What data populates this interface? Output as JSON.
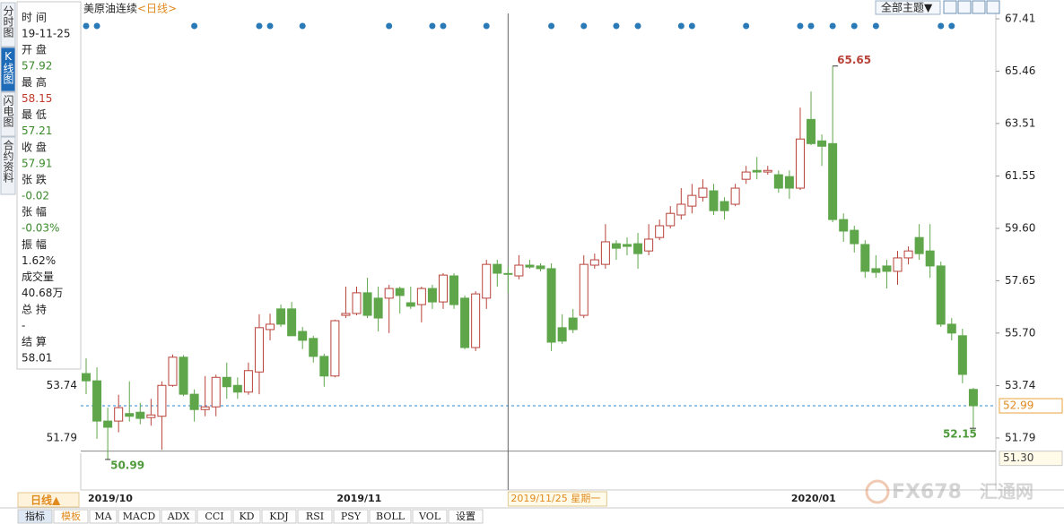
{
  "header": {
    "title": "美原油连续",
    "period": "<日线>"
  },
  "theme_button": "全部主题▼",
  "side_tabs": [
    "分时图",
    "K线图",
    "闪电图",
    "合约资料"
  ],
  "info_panel": [
    {
      "label": "时 间",
      "value": "19-11-25",
      "color": "#222"
    },
    {
      "label": "开 盘",
      "value": "57.92",
      "color": "#3a8a2a"
    },
    {
      "label": "最 高",
      "value": "58.15",
      "color": "#c0392b"
    },
    {
      "label": "最 低",
      "value": "57.21",
      "color": "#3a8a2a"
    },
    {
      "label": "收 盘",
      "value": "57.91",
      "color": "#3a8a2a"
    },
    {
      "label": "张 跌",
      "value": "-0.02",
      "color": "#3a8a2a"
    },
    {
      "label": "张 幅",
      "value": "-0.03%",
      "color": "#3a8a2a"
    },
    {
      "label": "振 幅",
      "value": "1.62%",
      "color": "#222"
    },
    {
      "label": "成交量",
      "value": "40.68万",
      "color": "#222"
    },
    {
      "label": "总 持",
      "value": "-",
      "color": "#222"
    },
    {
      "label": "结 算",
      "value": "58.01",
      "color": "#222"
    }
  ],
  "period_selector": "日线▲",
  "toolbar": [
    "指标",
    "模板",
    "MA",
    "MACD",
    "ADX",
    "CCI",
    "KD",
    "KDJ",
    "RSI",
    "PSY",
    "BOLL",
    "VOL",
    "设置"
  ],
  "watermark": [
    "FX678",
    "汇通网"
  ],
  "chart_data": {
    "type": "candlestick",
    "up_color": "#b8423a",
    "down_color": "#5fa64b",
    "categories": [
      "2019/10",
      null,
      null,
      null,
      null,
      null,
      null,
      null,
      null,
      null,
      null,
      null,
      null,
      null,
      null,
      null,
      null,
      null,
      null,
      null,
      null,
      null,
      null,
      "2019/11",
      null,
      null,
      null,
      null,
      null,
      null,
      null,
      null,
      null,
      null,
      null,
      null,
      null,
      null,
      null,
      null,
      null,
      null,
      null,
      null,
      null,
      null,
      null,
      null,
      null,
      null,
      null,
      null,
      null,
      null,
      null,
      null,
      null,
      null,
      null,
      null,
      null,
      null,
      null,
      null,
      null,
      "2020/01",
      null,
      null,
      null,
      null,
      null,
      null,
      null,
      null,
      null,
      null,
      null,
      null,
      null,
      null,
      null,
      null,
      null
    ],
    "open": [
      54.19,
      53.92,
      52.42,
      52.42,
      52.7,
      52.75,
      52.55,
      52.6,
      53.75,
      54.8,
      53.42,
      52.85,
      52.95,
      54.05,
      53.75,
      53.5,
      54.25,
      55.83,
      56.6,
      56.6,
      55.76,
      55.5,
      54.83,
      54.1,
      56.36,
      56.43,
      57.2,
      57.0,
      57.0,
      57.36,
      56.83,
      56.76,
      57.36,
      56.86,
      57.83,
      57.0,
      55.16,
      57.0,
      58.26,
      57.92,
      57.83,
      58.23,
      58.2,
      58.1,
      55.9,
      56.26,
      56.36,
      58.23,
      58.26,
      59.03,
      59.0,
      59.03,
      58.76,
      59.26,
      59.7,
      60.1,
      60.43,
      60.76,
      61.0,
      60.6,
      60.5,
      61.43,
      61.76,
      61.7,
      61.6,
      61.53,
      61.1,
      63.66,
      62.86,
      62.76,
      59.93,
      59.53,
      59.0,
      58.1,
      58.2,
      58.0,
      58.5,
      59.26,
      58.76,
      58.2,
      56.03,
      55.6,
      53.6
    ],
    "high": [
      54.76,
      54.42,
      52.92,
      53.4,
      53.9,
      53.1,
      53.25,
      53.9,
      54.9,
      54.88,
      53.6,
      54.1,
      54.15,
      54.6,
      54.05,
      54.6,
      56.4,
      56.42,
      56.76,
      56.86,
      55.93,
      55.6,
      54.93,
      56.2,
      57.43,
      57.43,
      57.76,
      57.43,
      57.5,
      57.43,
      57.43,
      57.43,
      57.5,
      57.93,
      57.93,
      57.1,
      57.26,
      58.43,
      58.43,
      58.15,
      58.6,
      58.43,
      58.3,
      58.3,
      56.4,
      56.6,
      58.6,
      58.66,
      59.76,
      59.16,
      59.26,
      59.43,
      59.76,
      59.93,
      60.43,
      61.1,
      61.26,
      61.43,
      61.26,
      60.76,
      61.26,
      61.93,
      62.26,
      61.93,
      61.76,
      61.76,
      64.1,
      64.7,
      63.1,
      65.65,
      60.16,
      59.7,
      59.16,
      58.6,
      58.43,
      58.76,
      58.93,
      59.76,
      59.76,
      58.36,
      56.26,
      55.86,
      53.66
    ],
    "low": [
      53.42,
      51.76,
      50.99,
      52.0,
      52.4,
      52.3,
      52.25,
      51.35,
      53.7,
      53.35,
      52.4,
      52.6,
      52.6,
      53.25,
      53.25,
      53.4,
      53.42,
      55.43,
      55.93,
      55.6,
      55.1,
      54.6,
      53.7,
      54.05,
      56.26,
      56.36,
      56.26,
      55.76,
      55.7,
      56.43,
      56.6,
      56.1,
      56.6,
      56.6,
      56.6,
      55.1,
      55.03,
      56.6,
      57.43,
      57.21,
      57.7,
      58.1,
      58.0,
      55.03,
      55.3,
      55.7,
      56.26,
      58.1,
      58.1,
      58.43,
      58.6,
      58.1,
      58.6,
      59.16,
      59.6,
      59.93,
      60.16,
      60.6,
      60.1,
      59.93,
      60.43,
      61.26,
      61.43,
      61.6,
      60.93,
      60.7,
      61.03,
      62.7,
      61.93,
      59.83,
      59.1,
      58.7,
      57.76,
      57.76,
      57.36,
      57.5,
      58.26,
      58.43,
      57.76,
      55.93,
      55.43,
      53.83,
      52.15
    ],
    "close": [
      53.92,
      52.42,
      52.19,
      52.92,
      52.6,
      52.52,
      52.65,
      53.75,
      54.8,
      53.42,
      52.85,
      52.95,
      54.05,
      53.7,
      53.5,
      54.3,
      55.9,
      56.03,
      56.03,
      55.6,
      55.43,
      54.83,
      54.1,
      56.16,
      56.43,
      57.2,
      56.36,
      56.26,
      57.36,
      57.1,
      56.7,
      57.36,
      56.86,
      57.86,
      56.76,
      55.16,
      57.16,
      58.26,
      57.93,
      57.91,
      58.23,
      58.16,
      58.1,
      55.36,
      55.4,
      55.83,
      58.26,
      58.43,
      59.1,
      58.86,
      58.93,
      58.66,
      59.2,
      59.7,
      60.16,
      60.5,
      60.83,
      61.1,
      60.26,
      60.26,
      61.1,
      61.7,
      61.7,
      61.76,
      61.1,
      61.1,
      62.93,
      62.76,
      62.66,
      59.93,
      59.5,
      59.03,
      58.0,
      57.96,
      58.0,
      58.5,
      58.76,
      58.66,
      58.2,
      56.03,
      55.7,
      54.16,
      52.99
    ],
    "ylim": [
      49.92,
      67.61
    ],
    "yticks": [
      51.79,
      53.74,
      {
        "value": 55.7,
        "label": "55.70"
      },
      57.65,
      {
        "value": 59.6,
        "label": "59.60"
      },
      61.55,
      63.51,
      65.46,
      67.41
    ],
    "grid": false,
    "hlines": [
      {
        "value": 52.99,
        "style": "dashed",
        "color": "#2a8ad4",
        "box_color": "#e8a33c"
      },
      {
        "value": 51.3,
        "label": "51.30",
        "style": "solid",
        "color": "#8a8a8a",
        "box_color": "#c8c8c8"
      }
    ],
    "crosshair": {
      "index": 39,
      "label": "2019/11/25 星期一"
    },
    "event_markers": [
      0,
      1,
      10,
      16,
      17,
      20,
      28,
      32,
      33,
      37,
      43,
      46,
      49,
      51,
      55,
      56,
      61,
      66,
      67,
      69,
      71,
      73,
      79,
      80
    ],
    "event_color": "#2a7ab8"
  }
}
